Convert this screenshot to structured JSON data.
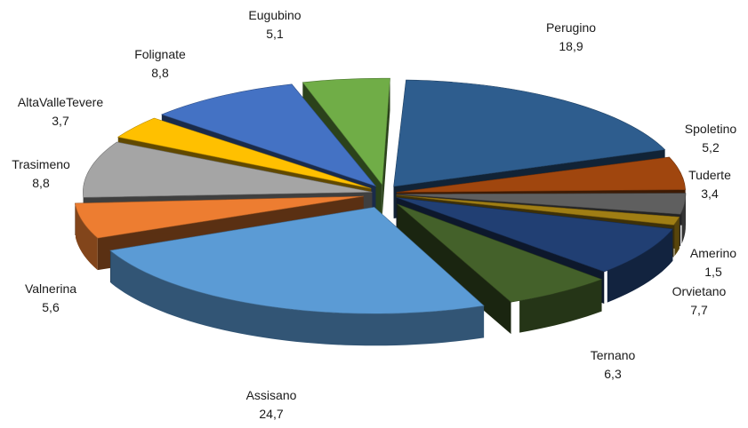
{
  "chart_data": {
    "type": "pie",
    "style": "exploded-3d",
    "title": "",
    "slices": [
      {
        "label": "Perugino",
        "value_text": "18,9",
        "value": 18.9,
        "color": "#2E5D8E"
      },
      {
        "label": "Spoletino",
        "value_text": "5,2",
        "value": 5.2,
        "color": "#A0460E"
      },
      {
        "label": "Tuderte",
        "value_text": "3,4",
        "value": 3.4,
        "color": "#5F5F5F"
      },
      {
        "label": "Amerino",
        "value_text": "1,5",
        "value": 1.5,
        "color": "#A07E14"
      },
      {
        "label": "Orvietano",
        "value_text": "7,7",
        "value": 7.7,
        "color": "#213F73"
      },
      {
        "label": "Ternano",
        "value_text": "6,3",
        "value": 6.3,
        "color": "#44612A"
      },
      {
        "label": "Assisano",
        "value_text": "24,7",
        "value": 24.7,
        "color": "#5B9BD5"
      },
      {
        "label": "Valnerina",
        "value_text": "5,6",
        "value": 5.6,
        "color": "#ED7D31"
      },
      {
        "label": "Trasimeno",
        "value_text": "8,8",
        "value": 8.8,
        "color": "#A5A5A5"
      },
      {
        "label": "AltaValleTevere",
        "value_text": "3,7",
        "value": 3.7,
        "color": "#FFC000"
      },
      {
        "label": "Folignate",
        "value_text": "8,8",
        "value": 8.8,
        "color": "#4472C4"
      },
      {
        "label": "Eugubino",
        "value_text": "5,1",
        "value": 5.1,
        "color": "#70AD47"
      }
    ]
  }
}
